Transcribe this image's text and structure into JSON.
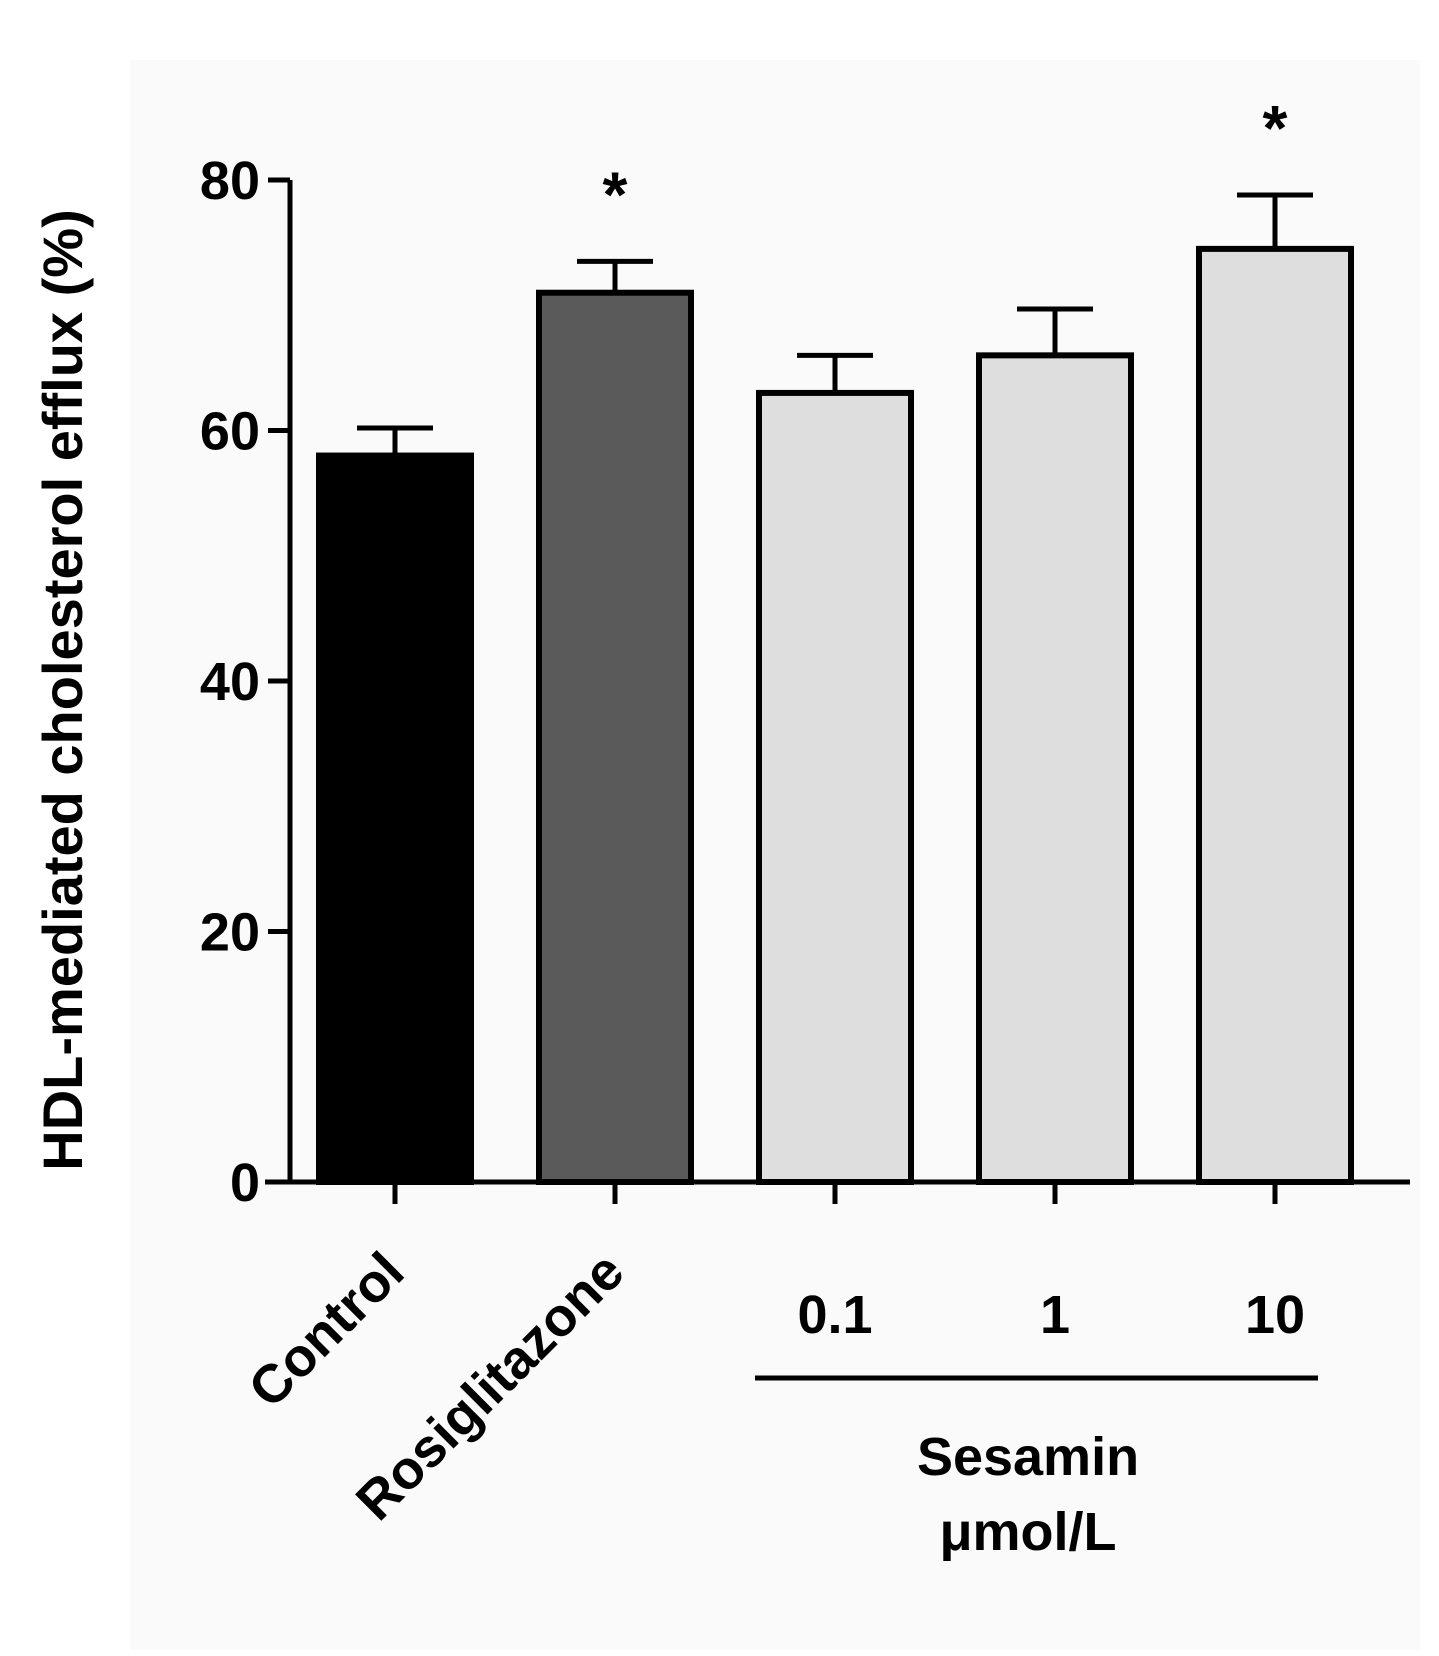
{
  "chart_data": {
    "type": "bar",
    "ylabel": "HDL-mediated cholesterol efflux (%)",
    "ylim": [
      0,
      80
    ],
    "yticks": [
      0,
      20,
      40,
      60,
      80
    ],
    "categories": [
      "Control",
      "Rosiglitazone",
      "0.1",
      "1",
      "10"
    ],
    "values": [
      58,
      71,
      63,
      66,
      74.5
    ],
    "errors": [
      2.2,
      2.5,
      3.0,
      3.7,
      4.3
    ],
    "significance": [
      "",
      "*",
      "",
      "",
      "*"
    ],
    "colors": [
      "#000000",
      "#5a5a5a",
      "#dedede",
      "#dedede",
      "#dedede"
    ],
    "group": {
      "label": "Sesamin",
      "unit": "μmol/L",
      "members": [
        "0.1",
        "1",
        "10"
      ]
    },
    "grid": false,
    "legend": "none"
  }
}
